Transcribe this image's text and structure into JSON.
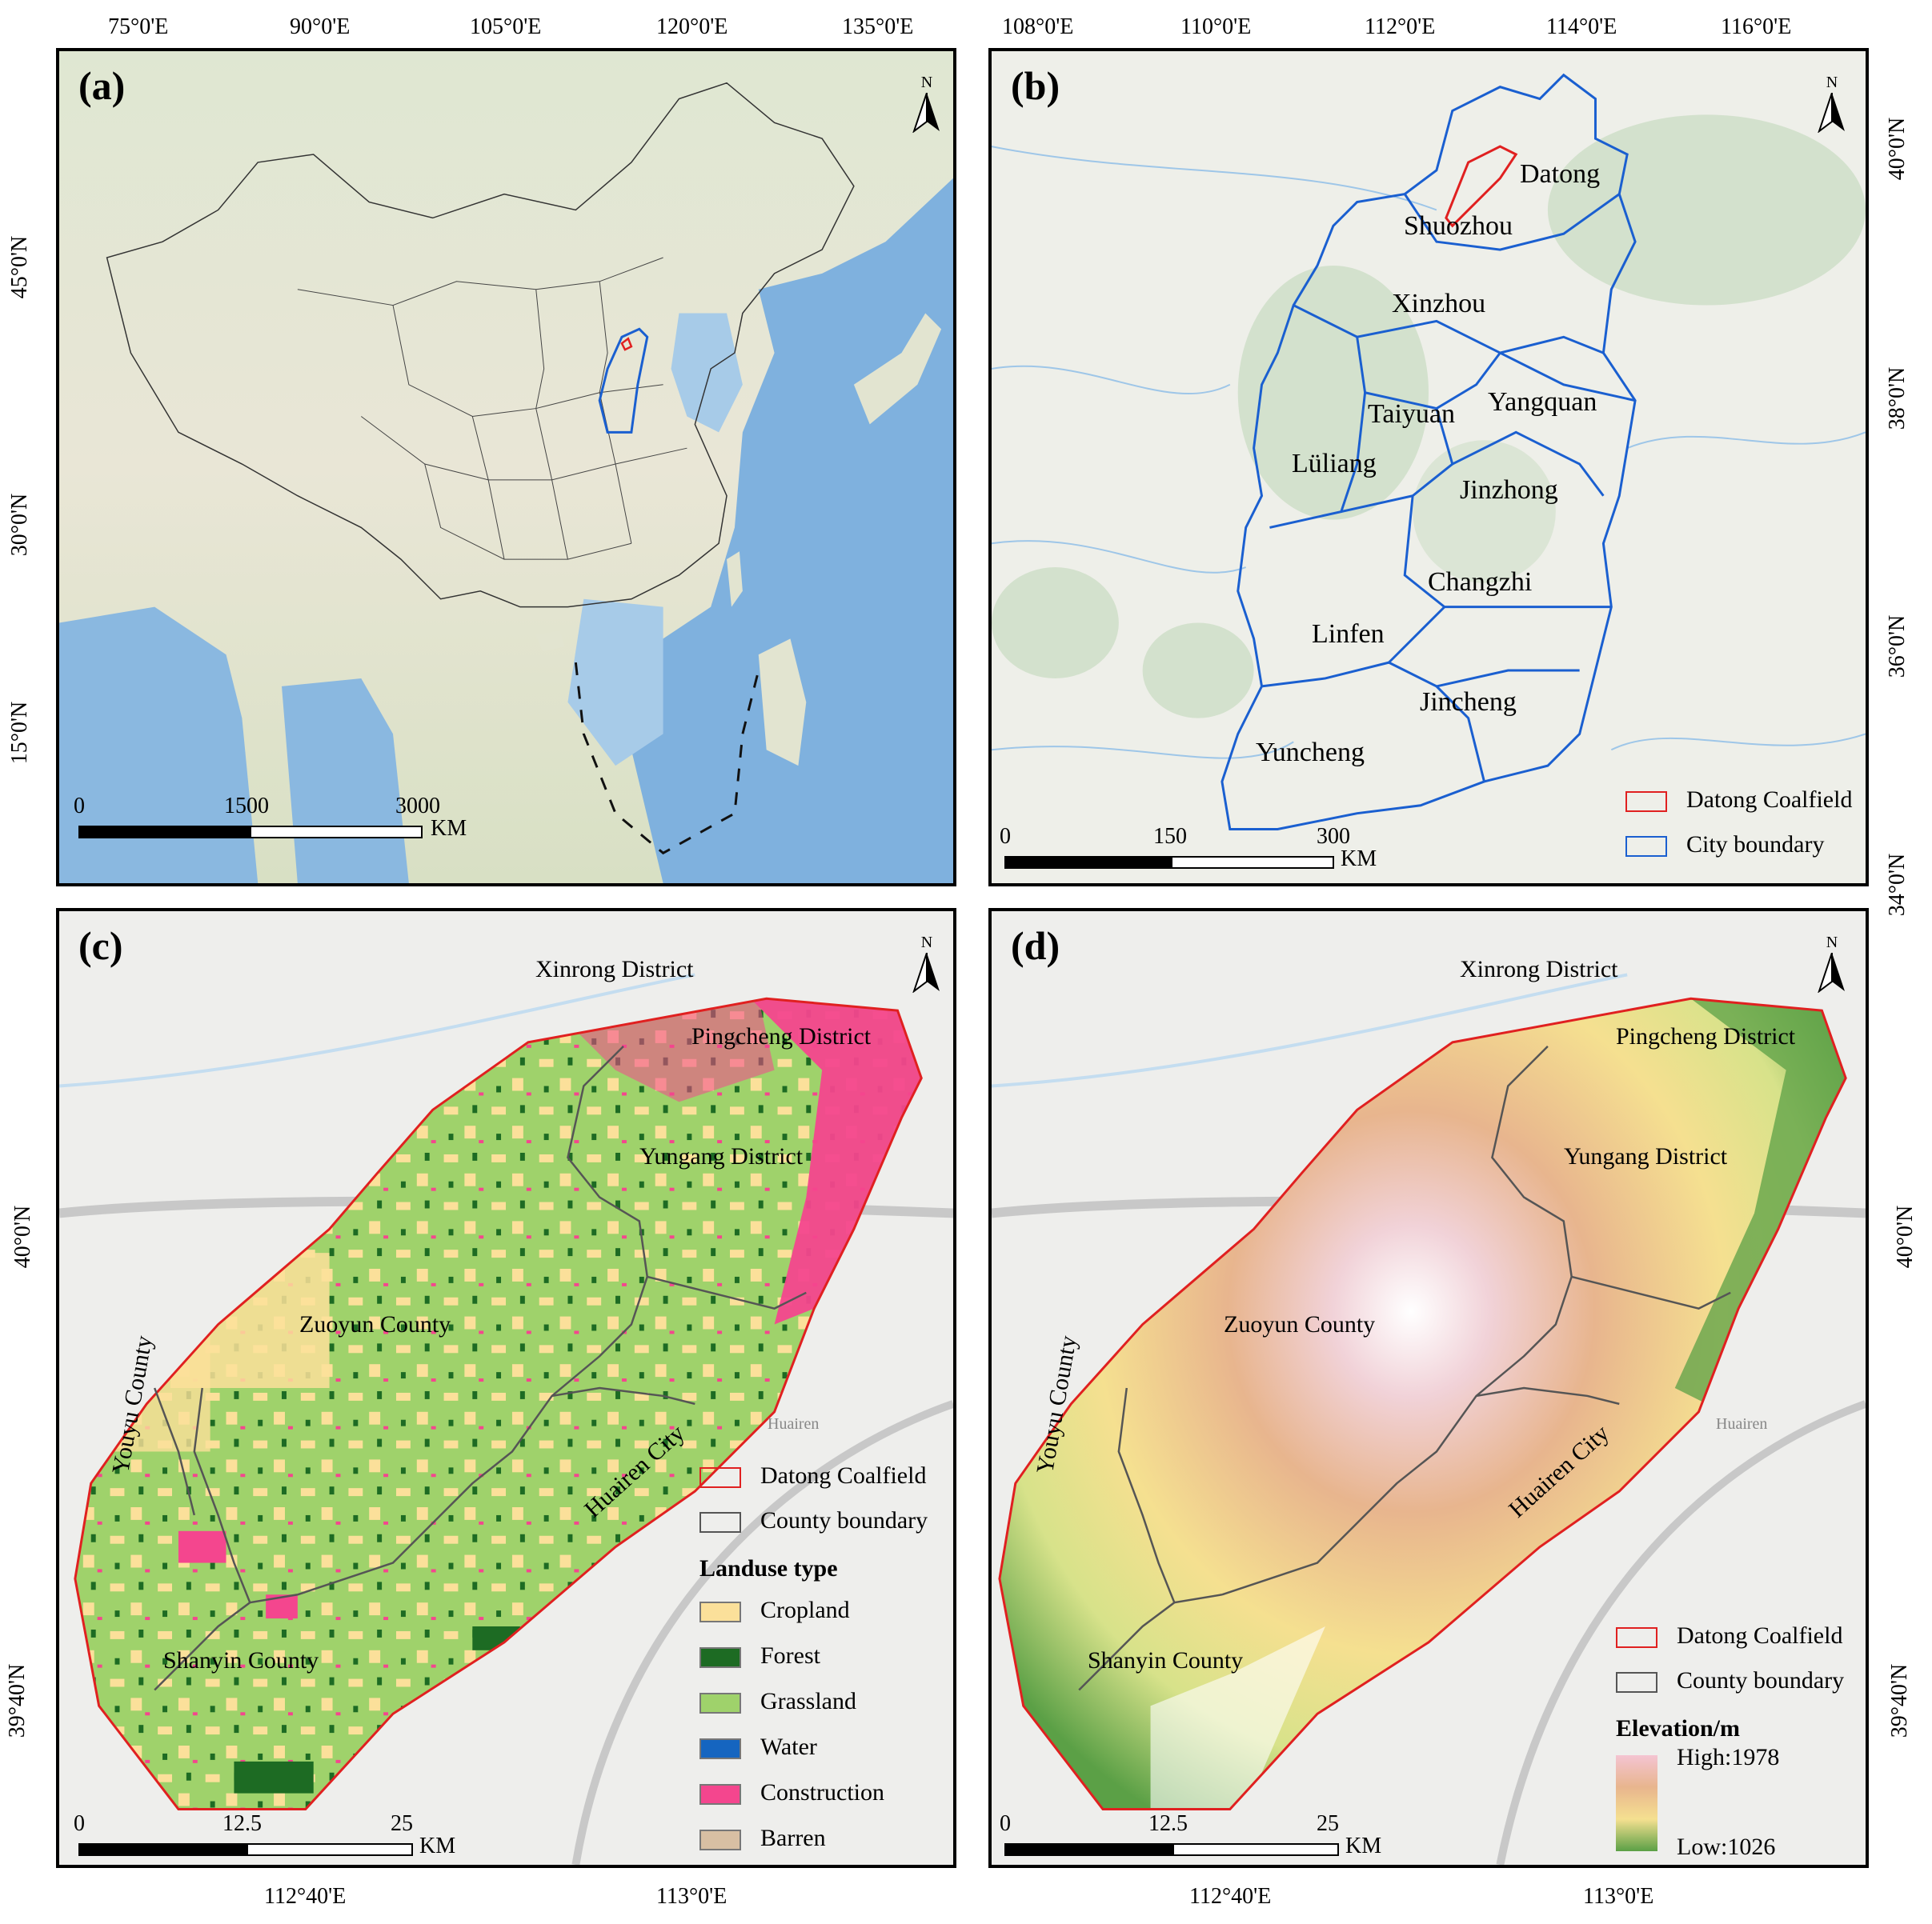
{
  "panels": {
    "a": {
      "label": "(a)",
      "top_ticks": [
        "75°0'E",
        "90°0'E",
        "105°0'E",
        "120°0'E",
        "135°0'E"
      ],
      "left_ticks": [
        "45°0'N",
        "30°0'N",
        "15°0'N"
      ],
      "scale": {
        "t0": "0",
        "t1": "1500",
        "t2": "3000",
        "unit": "KM"
      },
      "north": "N"
    },
    "b": {
      "label": "(b)",
      "top_ticks": [
        "108°0'E",
        "110°0'E",
        "112°0'E",
        "114°0'E",
        "116°0'E"
      ],
      "right_ticks": [
        "40°0'N",
        "38°0'N",
        "36°0'N",
        "34°0'N"
      ],
      "cities": [
        "Datong",
        "Shuozhou",
        "Xinzhou",
        "Taiyuan",
        "Yangquan",
        "Lüliang",
        "Jinzhong",
        "Changzhi",
        "Linfen",
        "Jincheng",
        "Yuncheng"
      ],
      "legend": {
        "coalfield": "Datong Coalfield",
        "city_boundary": "City boundary"
      },
      "scale": {
        "t0": "0",
        "t1": "150",
        "t2": "300",
        "unit": "KM"
      },
      "north": "N"
    },
    "c": {
      "label": "(c)",
      "left_ticks": [
        "40°0'N",
        "39°40'N"
      ],
      "bottom_ticks": [
        "112°40'E",
        "113°0'E"
      ],
      "places": {
        "xinrong": "Xinrong District",
        "pingcheng": "Pingcheng District",
        "yungang": "Yungang District",
        "zuoyun": "Zuoyun County",
        "youyu": "Youyu County",
        "huairen_city": "Huairen City",
        "shanyin": "Shanyin County",
        "huairen_town": "Huairen"
      },
      "legend": {
        "coalfield": "Datong Coalfield",
        "county_boundary": "County boundary",
        "title": "Landuse type",
        "classes": [
          {
            "name": "Cropland",
            "color": "#fbe09a"
          },
          {
            "name": "Forest",
            "color": "#1d6b23"
          },
          {
            "name": "Grassland",
            "color": "#9fd26b"
          },
          {
            "name": "Water",
            "color": "#1565c0"
          },
          {
            "name": "Construction",
            "color": "#f4468e"
          },
          {
            "name": "Barren",
            "color": "#d8bfa3"
          }
        ]
      },
      "scale": {
        "t0": "0",
        "t1": "12.5",
        "t2": "25",
        "unit": "KM"
      },
      "north": "N"
    },
    "d": {
      "label": "(d)",
      "right_ticks": [
        "40°0'N",
        "39°40'N"
      ],
      "bottom_ticks": [
        "112°40'E",
        "113°0'E"
      ],
      "places": {
        "xinrong": "Xinrong District",
        "pingcheng": "Pingcheng District",
        "yungang": "Yungang District",
        "zuoyun": "Zuoyun County",
        "youyu": "Youyu County",
        "huairen_city": "Huairen City",
        "shanyin": "Shanyin County",
        "huairen_town": "Huairen"
      },
      "legend": {
        "coalfield": "Datong Coalfield",
        "county_boundary": "County boundary",
        "title": "Elevation/m",
        "high": "High:1978",
        "low": "Low:1026"
      },
      "scale": {
        "t0": "0",
        "t1": "12.5",
        "t2": "25",
        "unit": "KM"
      },
      "north": "N"
    }
  },
  "colors": {
    "coalfield": "#e02020",
    "city_boundary": "#1a5fd0",
    "county_boundary": "#555555"
  }
}
